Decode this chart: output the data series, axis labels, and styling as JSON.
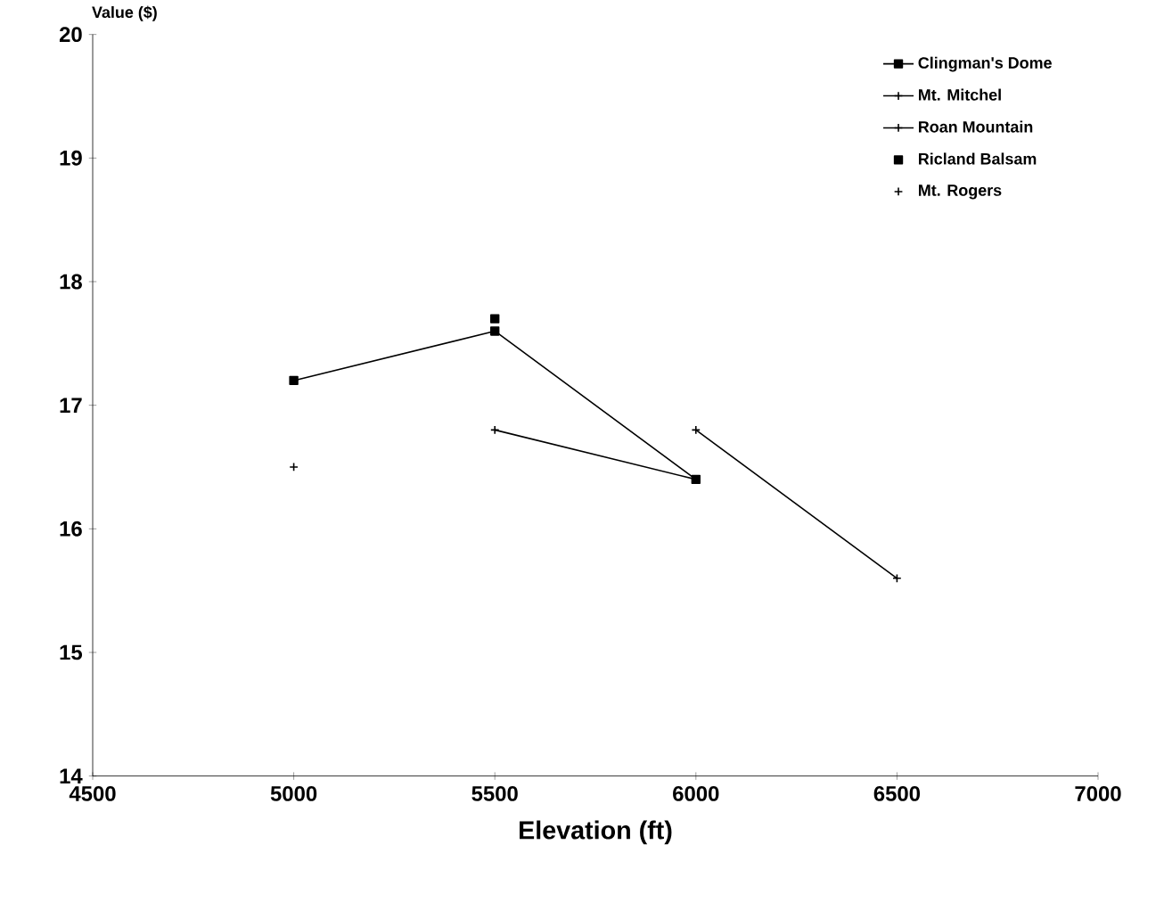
{
  "chart_data": {
    "type": "line",
    "xlabel": "Elevation (ft)",
    "ylabel": "Value ($)",
    "xlim": [
      4500,
      7000
    ],
    "xticks": [
      4500,
      5000,
      5500,
      6000,
      6500,
      7000
    ],
    "ylim": [
      14,
      20
    ],
    "yticks": [
      14,
      15,
      16,
      17,
      18,
      19,
      20
    ],
    "grid": false,
    "legend": "top right",
    "series": [
      {
        "name": "Clingman's Dome",
        "color": "#000000",
        "marker": "square",
        "x": [
          5000,
          5500,
          6000
        ],
        "values": [
          17.2,
          17.6,
          16.4
        ]
      },
      {
        "name": "Mt. Mitchel",
        "color": "#000000",
        "marker": "cross",
        "x": [
          6000,
          6500
        ],
        "values": [
          16.8,
          15.6
        ]
      },
      {
        "name": "Roan Mountain",
        "color": "#000000",
        "marker": "cross",
        "x": [
          5500,
          6000
        ],
        "values": [
          16.8,
          16.4
        ]
      },
      {
        "name": "Ricland Balsam",
        "color": "#000000",
        "marker": "square",
        "x": [
          5500
        ],
        "values": [
          17.7
        ]
      },
      {
        "name": "Mt. Rogers",
        "color": "#000000",
        "marker": "cross",
        "x": [
          5000
        ],
        "values": [
          16.5
        ]
      }
    ]
  }
}
